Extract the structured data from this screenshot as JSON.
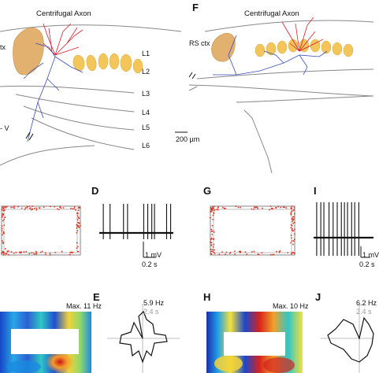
{
  "panels": {
    "F": "F",
    "D": "D",
    "G": "G",
    "I": "I",
    "H": "H",
    "E": "E",
    "J": "J"
  },
  "left_histology": {
    "annotation": "Centrifugal Axon",
    "region_fragment": "tx",
    "layer_fragment": "- V",
    "layers": [
      "L1",
      "L2",
      "L3",
      "L4",
      "L5",
      "L6"
    ],
    "scale_bar": "200 µm"
  },
  "right_histology": {
    "annotation": "Centrifugal Axon",
    "region": "RS ctx"
  },
  "traces": {
    "voltage_scale": "1 mV",
    "time_scale": "0.2 s"
  },
  "rate_maps": {
    "left_max": "Max. 11 Hz",
    "right_max": "Max. 10 Hz"
  },
  "polar": {
    "left_peak": "5.9 Hz",
    "left_time": "2.4 s",
    "right_peak": "6.2 Hz",
    "right_time": "2.4 s"
  },
  "colors": {
    "neuron_red": "#d81e2c",
    "neuron_blue": "#3a4fb5",
    "barrel": "#f2c65a",
    "lesion": "#e2b170",
    "spike_dots": "#e0301e"
  },
  "spike_trains": {
    "left_spike_times_s": [
      0.03,
      0.08,
      0.18,
      0.21,
      0.33,
      0.36,
      0.39,
      0.41,
      0.5,
      0.53
    ],
    "right_spike_times_s": [
      0.03,
      0.07,
      0.1,
      0.15,
      0.19,
      0.23,
      0.27,
      0.3,
      0.33,
      0.37,
      0.4,
      0.44
    ]
  }
}
